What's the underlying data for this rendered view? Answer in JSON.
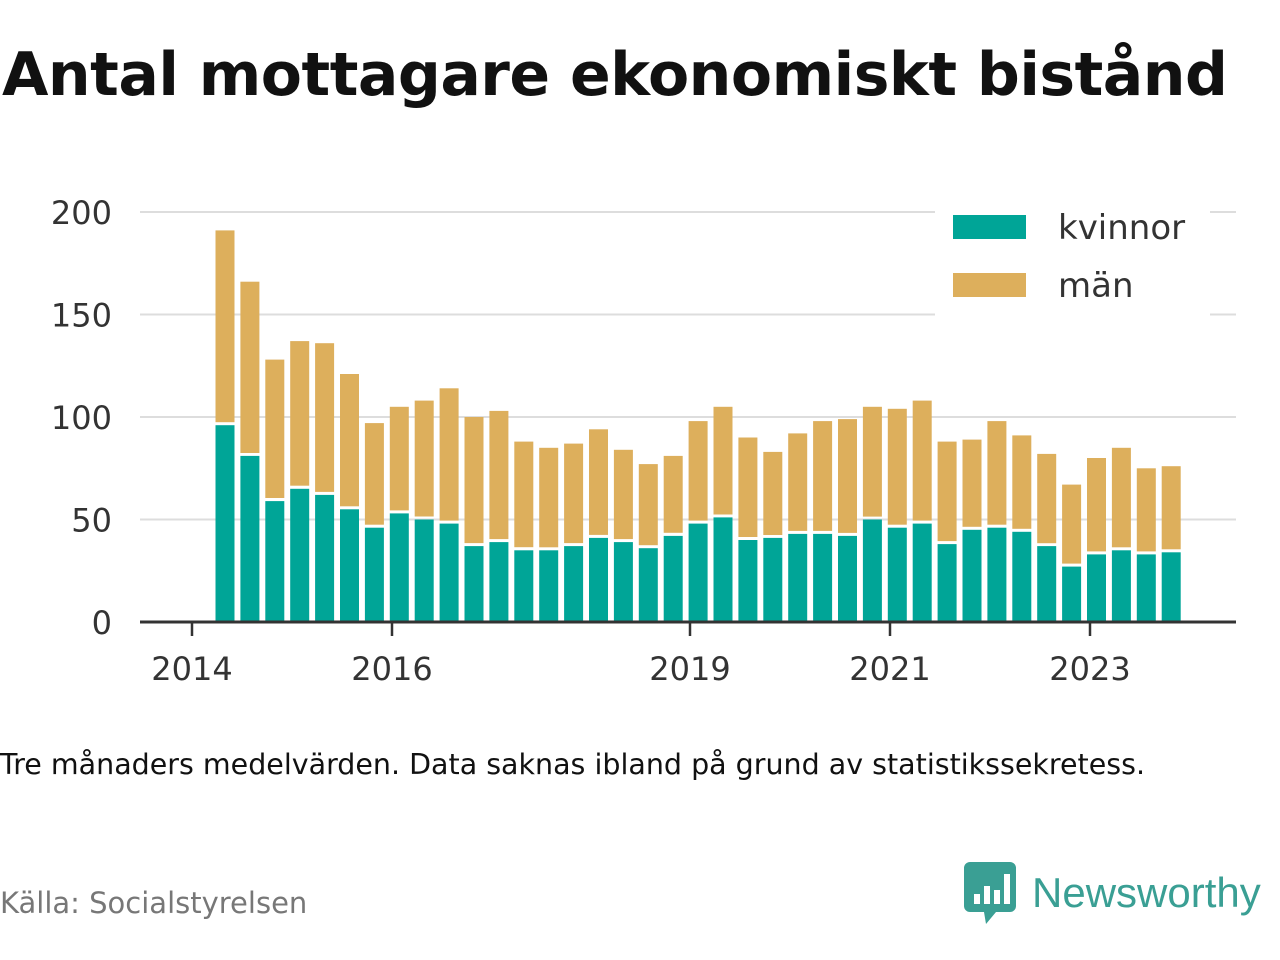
{
  "title": "Antal mottagare ekonomiskt bistånd",
  "note": "Tre månaders medelvärden. Data saknas ibland på grund av statistikssekretess.",
  "source": "Källa: Socialstyrelsen",
  "brand": {
    "name": "Newsworthy",
    "icon": "newsworthy-logo-icon",
    "color": "#3a9f94"
  },
  "chart_data": {
    "type": "bar",
    "stacked": true,
    "ylim": [
      0,
      200
    ],
    "yticks": [
      0,
      50,
      100,
      150,
      200
    ],
    "xticks": [
      "2014",
      "2016",
      "2019",
      "2021",
      "2023"
    ],
    "xlabel": "",
    "ylabel": "",
    "grid": true,
    "legend_position": "top-right",
    "series": [
      {
        "name": "kvinnor",
        "color": "#00a597",
        "values": [
          96,
          81,
          59,
          65,
          62,
          55,
          46,
          53,
          50,
          48,
          37,
          39,
          35,
          35,
          37,
          41,
          39,
          36,
          42,
          48,
          51,
          40,
          41,
          43,
          43,
          42,
          50,
          46,
          48,
          38,
          45,
          46,
          44,
          37,
          27,
          33,
          35,
          33,
          34
        ]
      },
      {
        "name": "män",
        "color": "#ddaf5c",
        "values": [
          95,
          85,
          69,
          72,
          74,
          66,
          51,
          52,
          58,
          66,
          63,
          64,
          53,
          50,
          50,
          53,
          45,
          41,
          39,
          50,
          54,
          50,
          42,
          49,
          55,
          57,
          55,
          58,
          60,
          50,
          44,
          52,
          47,
          45,
          40,
          47,
          50,
          42,
          42
        ]
      }
    ]
  }
}
